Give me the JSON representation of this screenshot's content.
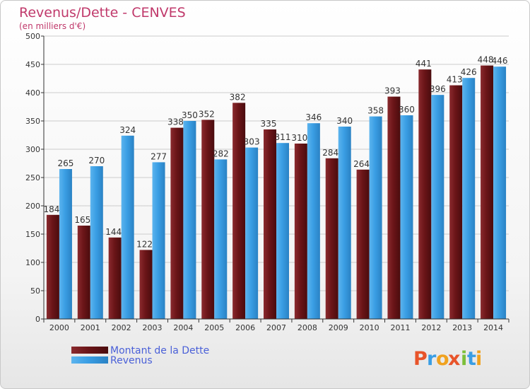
{
  "chart_data": {
    "type": "bar",
    "title": "Revenus/Dette - CENVES",
    "subtitle": "(en milliers d'€)",
    "categories": [
      "2000",
      "2001",
      "2002",
      "2003",
      "2004",
      "2005",
      "2006",
      "2007",
      "2008",
      "2009",
      "2010",
      "2011",
      "2012",
      "2013",
      "2014"
    ],
    "series": [
      {
        "name": "Montant de la Dette",
        "color": "#6b1518",
        "values": [
          184,
          165,
          144,
          122,
          338,
          352,
          382,
          335,
          310,
          284,
          264,
          393,
          441,
          413,
          448
        ]
      },
      {
        "name": "Revenus",
        "color": "#3a9ee4",
        "values": [
          265,
          270,
          324,
          277,
          350,
          282,
          303,
          311,
          346,
          340,
          358,
          360,
          396,
          426,
          446
        ]
      }
    ],
    "ylim": [
      0,
      500
    ],
    "yticks": [
      0,
      50,
      100,
      150,
      200,
      250,
      300,
      350,
      400,
      450,
      500
    ],
    "grid": true,
    "legend_position": "bottom-left"
  },
  "logo": {
    "letters": [
      "P",
      "r",
      "o",
      "x",
      "i",
      "t",
      "i"
    ],
    "colors": [
      "#e8542a",
      "#3a9ee4",
      "#f0a21f",
      "#e8542a",
      "#7cbf3a",
      "#3a9ee4",
      "#f0a21f"
    ]
  }
}
